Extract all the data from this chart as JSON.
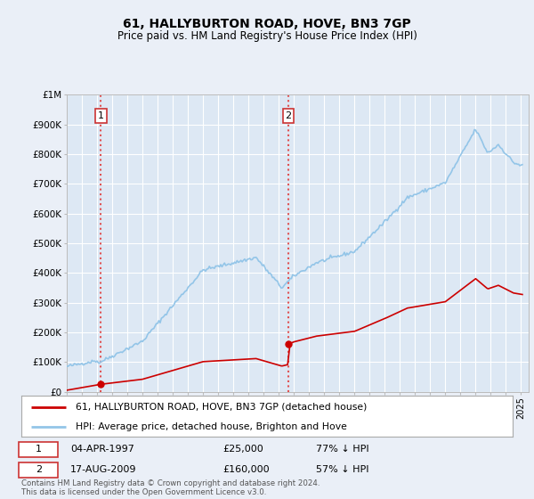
{
  "title": "61, HALLYBURTON ROAD, HOVE, BN3 7GP",
  "subtitle": "Price paid vs. HM Land Registry's House Price Index (HPI)",
  "property_label": "61, HALLYBURTON ROAD, HOVE, BN3 7GP (detached house)",
  "hpi_label": "HPI: Average price, detached house, Brighton and Hove",
  "note": "Contains HM Land Registry data © Crown copyright and database right 2024.\nThis data is licensed under the Open Government Licence v3.0.",
  "sale1_year": 1997.25,
  "sale1_price": 25000,
  "sale2_year": 2009.63,
  "sale2_price": 160000,
  "ylim": [
    0,
    1000000
  ],
  "xlim_start": 1995.0,
  "xlim_end": 2025.5,
  "background_color": "#eaeff7",
  "plot_bg_color": "#dde8f4",
  "grid_color": "#ffffff",
  "hpi_line_color": "#93c5e8",
  "property_line_color": "#cc0000",
  "sale_marker_color": "#cc0000",
  "dashed_line_color": "#e05050",
  "label_box_edge": "#cc3333"
}
